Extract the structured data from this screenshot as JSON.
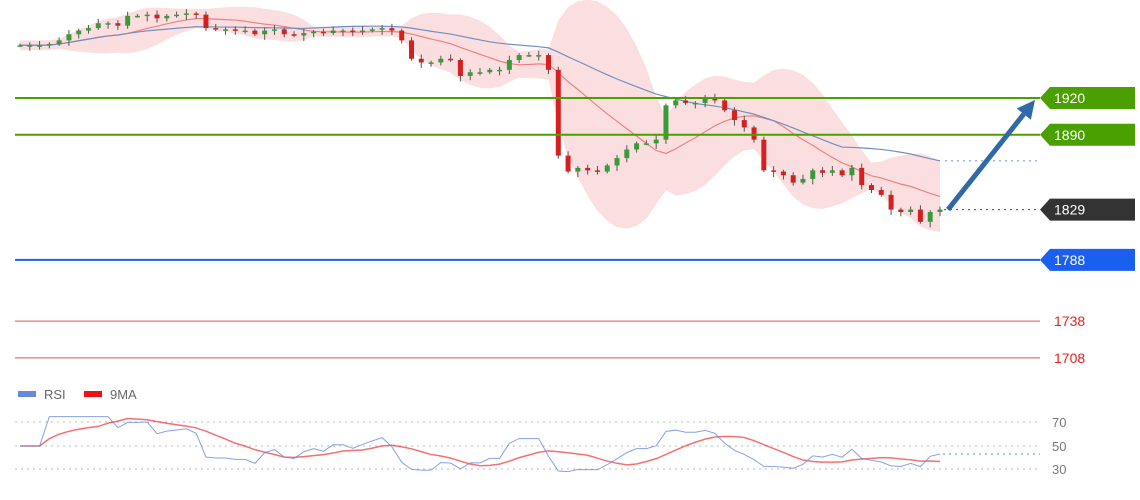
{
  "chart_data": [
    {
      "type": "candlestick",
      "title": "",
      "price_series": {
        "closes": [
          1963,
          1963,
          1963,
          1964,
          1967,
          1972,
          1975,
          1977,
          1981,
          1981,
          1979,
          1987,
          1987,
          1988,
          1985,
          1987,
          1988,
          1989,
          1988,
          1977,
          1976,
          1976,
          1975,
          1975,
          1972,
          1975,
          1976,
          1972,
          1971,
          1973,
          1974,
          1973,
          1975,
          1975,
          1974,
          1975,
          1976,
          1977,
          1975,
          1967,
          1952,
          1949,
          1949,
          1952,
          1951,
          1938,
          1941,
          1941,
          1943,
          1943,
          1951,
          1955,
          1955,
          1955,
          1943,
          1873,
          1860,
          1863,
          1861,
          1860,
          1865,
          1871,
          1878,
          1883,
          1883,
          1886,
          1914,
          1918,
          1916,
          1916,
          1920,
          1918,
          1910,
          1902,
          1896,
          1886,
          1861,
          1860,
          1857,
          1851,
          1854,
          1861,
          1859,
          1861,
          1857,
          1863,
          1849,
          1845,
          1841,
          1829,
          1827,
          1829,
          1819,
          1827,
          1829
        ],
        "moving_averages": [
          "bollinger-20",
          "sma-slow"
        ],
        "band_color": "#f9c9cc",
        "fast_ma_color": "#f08080",
        "slow_ma_color": "#6f8fc0"
      },
      "levels": [
        {
          "value": 1920,
          "label": "1920",
          "style": "tag",
          "color": "#4aa000"
        },
        {
          "value": 1890,
          "label": "1890",
          "style": "tag",
          "color": "#4aa000"
        },
        {
          "value": 1829,
          "label": "1829",
          "style": "tag-dotted",
          "color": "#333333"
        },
        {
          "value": 1788,
          "label": "1788",
          "style": "tag",
          "color": "#1a5ff0"
        },
        {
          "value": 1738,
          "label": "1738",
          "style": "text",
          "color": "#e8211c"
        },
        {
          "value": 1708,
          "label": "1708",
          "style": "text",
          "color": "#e8211c"
        }
      ],
      "annotation": {
        "type": "arrow",
        "from": 1829,
        "to": 1920,
        "color": "#2f6aa8"
      },
      "ylim": [
        1708,
        1988
      ]
    },
    {
      "type": "line",
      "legend": [
        {
          "name": "RSI",
          "color": "#6688dd"
        },
        {
          "name": "9MA",
          "color": "#ee1111"
        }
      ],
      "legend_placement": "top-left",
      "ylim": [
        20,
        75
      ],
      "yticks": [
        "70",
        "50",
        "30"
      ],
      "grid": "dotted"
    }
  ]
}
